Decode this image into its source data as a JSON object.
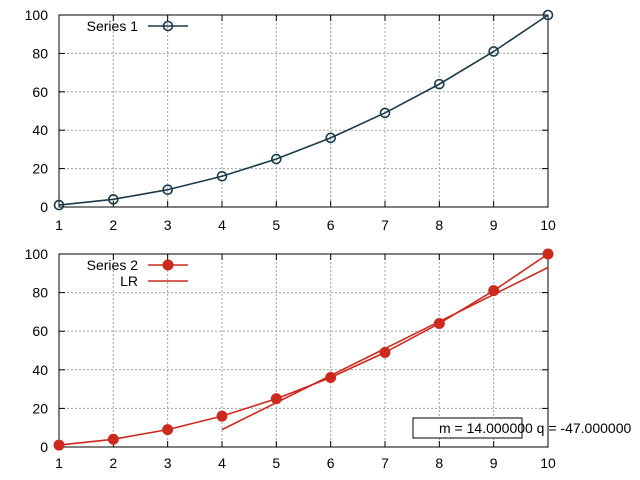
{
  "chart_data": [
    {
      "type": "line",
      "x": [
        1,
        2,
        3,
        4,
        5,
        6,
        7,
        8,
        9,
        10
      ],
      "xlim": [
        1,
        10
      ],
      "ylim": [
        0,
        100
      ],
      "xticks": [
        "1",
        "2",
        "3",
        "4",
        "5",
        "6",
        "7",
        "8",
        "9",
        "10"
      ],
      "yticks": [
        "0",
        "20",
        "40",
        "60",
        "80",
        "100"
      ],
      "grid": true,
      "legend_position": "top-left",
      "series": [
        {
          "name": "Series 1",
          "values": [
            1,
            4,
            9,
            16,
            25,
            36,
            49,
            64,
            81,
            100
          ],
          "color": "#1b3b4b",
          "marker": "open-circle"
        }
      ]
    },
    {
      "type": "line",
      "x": [
        1,
        2,
        3,
        4,
        5,
        6,
        7,
        8,
        9,
        10
      ],
      "xlim": [
        1,
        10
      ],
      "ylim": [
        0,
        100
      ],
      "xticks": [
        "1",
        "2",
        "3",
        "4",
        "5",
        "6",
        "7",
        "8",
        "9",
        "10"
      ],
      "yticks": [
        "0",
        "20",
        "40",
        "60",
        "80",
        "100"
      ],
      "grid": true,
      "legend_position": "top-left",
      "series": [
        {
          "name": "Series 2",
          "values": [
            1,
            4,
            9,
            16,
            25,
            36,
            49,
            64,
            81,
            100
          ],
          "color": "#cc2a1e",
          "marker": "filled-circle"
        },
        {
          "name": "LR",
          "x": [
            4,
            5,
            6,
            7,
            8,
            9,
            10
          ],
          "values": [
            9,
            23,
            37,
            51,
            65,
            79,
            93
          ],
          "color": "#cc2a1e",
          "marker": "none"
        }
      ],
      "annotation": "m = 14.000000 q = -47.000000"
    }
  ]
}
